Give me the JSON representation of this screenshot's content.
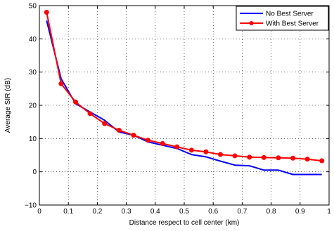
{
  "chart_data": {
    "type": "line",
    "xlabel": "Distance respect to cell center (km)",
    "ylabel": "Average SIR (dB)",
    "xlim": [
      0,
      1
    ],
    "ylim": [
      -10,
      50
    ],
    "xticks": [
      0,
      0.1,
      0.2,
      0.3,
      0.4,
      0.5,
      0.6,
      0.7,
      0.8,
      0.9,
      1
    ],
    "xtick_labels": [
      "0",
      "0.1",
      "0.2",
      "0.3",
      "0.4",
      "0.5",
      "0.6",
      "0.7",
      "0.8",
      "0.9",
      "1"
    ],
    "yticks": [
      -10,
      0,
      10,
      20,
      30,
      40,
      50
    ],
    "ytick_labels": [
      "−10",
      "0",
      "10",
      "20",
      "30",
      "40",
      "50"
    ],
    "grid": true,
    "legend_position": "top-right",
    "series": [
      {
        "name": "No Best Server",
        "color": "#0000ff",
        "marker": "none",
        "x": [
          0.025,
          0.075,
          0.125,
          0.175,
          0.225,
          0.275,
          0.325,
          0.375,
          0.425,
          0.475,
          0.525,
          0.575,
          0.625,
          0.675,
          0.725,
          0.775,
          0.825,
          0.875,
          0.925,
          0.975
        ],
        "y": [
          45.5,
          28.0,
          20.5,
          18.0,
          15.5,
          12.0,
          11.0,
          9.0,
          8.0,
          7.0,
          5.2,
          4.5,
          3.2,
          2.0,
          1.8,
          0.5,
          0.5,
          -0.8,
          -0.8,
          -0.8
        ]
      },
      {
        "name": "With Best Server",
        "color": "#ff0000",
        "marker": "circle",
        "x": [
          0.025,
          0.075,
          0.125,
          0.175,
          0.225,
          0.275,
          0.325,
          0.375,
          0.425,
          0.475,
          0.525,
          0.575,
          0.625,
          0.675,
          0.725,
          0.775,
          0.825,
          0.875,
          0.925,
          0.975
        ],
        "y": [
          48.0,
          26.5,
          21.0,
          17.5,
          14.5,
          12.5,
          11.0,
          9.5,
          8.5,
          7.5,
          6.5,
          6.0,
          5.2,
          4.8,
          4.4,
          4.3,
          4.2,
          4.1,
          3.8,
          3.3
        ]
      }
    ]
  }
}
